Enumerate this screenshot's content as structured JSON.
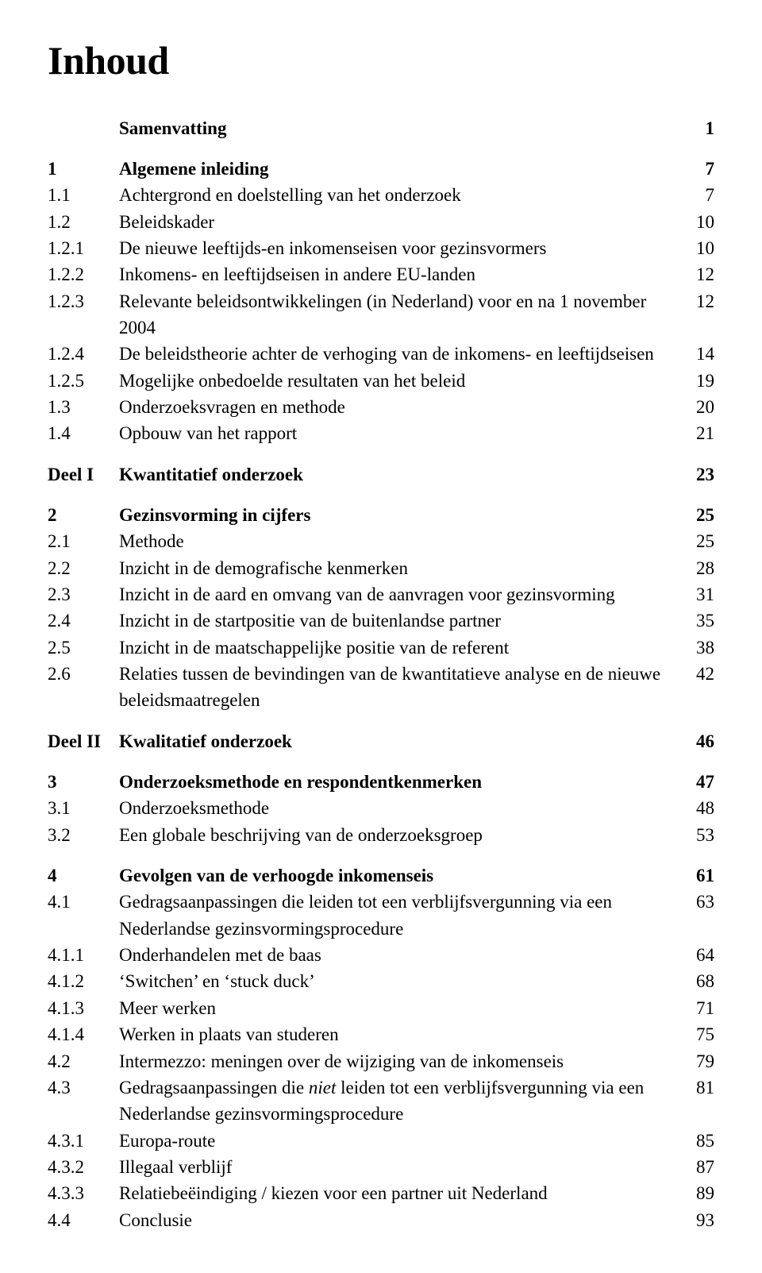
{
  "heading": "Inhoud",
  "entries": [
    {
      "type": "row",
      "num": "",
      "title": "Samenvatting",
      "page": "1",
      "bold": true
    },
    {
      "type": "gap"
    },
    {
      "type": "row",
      "num": "1",
      "title": "Algemene inleiding",
      "page": "7",
      "bold": true
    },
    {
      "type": "row",
      "num": "1.1",
      "title": "Achtergrond en doelstelling van het onderzoek",
      "page": "7"
    },
    {
      "type": "row",
      "num": "1.2",
      "title": "Beleidskader",
      "page": "10"
    },
    {
      "type": "row",
      "num": "1.2.1",
      "title": "De nieuwe leeftijds-en inkomenseisen voor gezinsvormers",
      "page": "10"
    },
    {
      "type": "row",
      "num": "1.2.2",
      "title": "Inkomens- en leeftijdseisen in andere EU-landen",
      "page": "12"
    },
    {
      "type": "row",
      "num": "1.2.3",
      "title": "Relevante beleidsontwikkelingen (in Nederland) voor en na 1 november 2004",
      "page": "12"
    },
    {
      "type": "row",
      "num": "1.2.4",
      "title": "De beleidstheorie achter de verhoging van de inkomens- en leeftijdseisen",
      "page": "14"
    },
    {
      "type": "row",
      "num": "1.2.5",
      "title": "Mogelijke onbedoelde resultaten van het beleid",
      "page": "19"
    },
    {
      "type": "row",
      "num": "1.3",
      "title": "Onderzoeksvragen en methode",
      "page": "20"
    },
    {
      "type": "row",
      "num": "1.4",
      "title": "Opbouw van het rapport",
      "page": "21"
    },
    {
      "type": "gap"
    },
    {
      "type": "row",
      "num": "Deel I",
      "title": "Kwantitatief onderzoek",
      "page": "23",
      "bold": true,
      "wide": true
    },
    {
      "type": "gap"
    },
    {
      "type": "row",
      "num": "2",
      "title": "Gezinsvorming in cijfers",
      "page": "25",
      "bold": true
    },
    {
      "type": "row",
      "num": "2.1",
      "title": "Methode",
      "page": "25"
    },
    {
      "type": "row",
      "num": "2.2",
      "title": "Inzicht in de demografische kenmerken",
      "page": "28"
    },
    {
      "type": "row",
      "num": "2.3",
      "title": "Inzicht in de aard en omvang van de aanvragen voor gezinsvorming",
      "page": "31"
    },
    {
      "type": "row",
      "num": "2.4",
      "title": "Inzicht in de startpositie van de buitenlandse partner",
      "page": "35"
    },
    {
      "type": "row",
      "num": "2.5",
      "title": "Inzicht in de maatschappelijke positie van de referent",
      "page": "38"
    },
    {
      "type": "row",
      "num": "2.6",
      "title": "Relaties tussen de bevindingen van de kwantitatieve analyse en de nieuwe beleidsmaatregelen",
      "page": "42"
    },
    {
      "type": "gap"
    },
    {
      "type": "row",
      "num": "Deel II",
      "title": "Kwalitatief onderzoek",
      "page": "46",
      "bold": true,
      "wide": true
    },
    {
      "type": "gap"
    },
    {
      "type": "row",
      "num": "3",
      "title": "Onderzoeksmethode en respondentkenmerken",
      "page": "47",
      "bold": true
    },
    {
      "type": "row",
      "num": "3.1",
      "title": "Onderzoeksmethode",
      "page": "48"
    },
    {
      "type": "row",
      "num": "3.2",
      "title": "Een globale beschrijving van de onderzoeksgroep",
      "page": "53"
    },
    {
      "type": "gap"
    },
    {
      "type": "row",
      "num": "4",
      "title": "Gevolgen van de verhoogde inkomenseis",
      "page": "61",
      "bold": true
    },
    {
      "type": "row",
      "num": "4.1",
      "title": "Gedragsaanpassingen die leiden tot een verblijfsvergunning via een Nederlandse gezinsvormingsprocedure",
      "page": "63"
    },
    {
      "type": "row",
      "num": "4.1.1",
      "title": "Onderhandelen met de baas",
      "page": "64"
    },
    {
      "type": "row",
      "num": "4.1.2",
      "title": "‘Switchen’ en ‘stuck duck’",
      "page": "68"
    },
    {
      "type": "row",
      "num": "4.1.3",
      "title": "Meer werken",
      "page": "71"
    },
    {
      "type": "row",
      "num": "4.1.4",
      "title": "Werken in plaats van studeren",
      "page": "75"
    },
    {
      "type": "row",
      "num": "4.2",
      "title": "Intermezzo: meningen over de wijziging van de inkomenseis",
      "page": "79"
    },
    {
      "type": "row-italic",
      "num": "4.3",
      "title_pre": "Gedragsaanpassingen die ",
      "title_it": "niet",
      "title_post": " leiden tot een verblijfsvergunning via een Nederlandse gezinsvormingsprocedure",
      "page": "81"
    },
    {
      "type": "row",
      "num": "4.3.1",
      "title": "Europa-route",
      "page": "85"
    },
    {
      "type": "row",
      "num": "4.3.2",
      "title": "Illegaal verblijf",
      "page": "87"
    },
    {
      "type": "row",
      "num": "4.3.3",
      "title": "Relatiebeëindiging / kiezen voor een partner uit Nederland",
      "page": "89"
    },
    {
      "type": "row",
      "num": "4.4",
      "title": "Conclusie",
      "page": "93"
    }
  ]
}
